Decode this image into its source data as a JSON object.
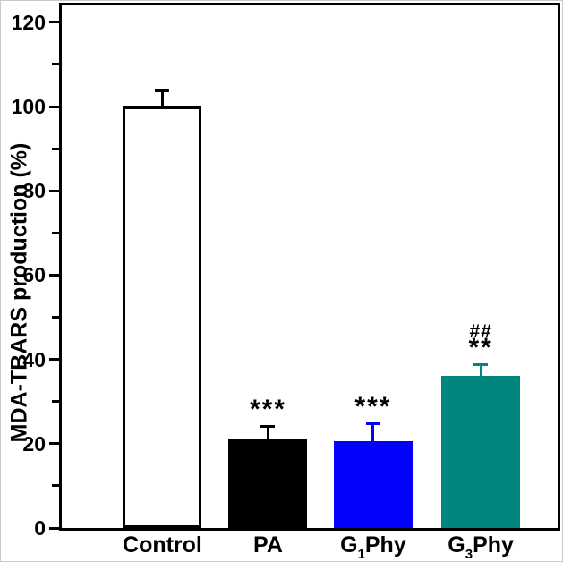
{
  "chart_data": {
    "type": "bar",
    "title": "",
    "xlabel": "",
    "ylabel": "MDA-TBARS production (%)",
    "ylim": [
      0,
      124
    ],
    "yticks_major": [
      0,
      20,
      40,
      60,
      80,
      100,
      120
    ],
    "yticks_minor": [
      10,
      30,
      50,
      70,
      90,
      110
    ],
    "grid": false,
    "legend": false,
    "categories": [
      "Control",
      "PA",
      "G1Phy",
      "G3Phy"
    ],
    "category_label_parts": [
      [
        "Control",
        "",
        ""
      ],
      [
        "PA",
        "",
        ""
      ],
      [
        "G",
        "1",
        "Phy"
      ],
      [
        "G",
        "3",
        "Phy"
      ]
    ],
    "values": [
      100,
      21,
      20.5,
      36
    ],
    "errors_plus": [
      4,
      3.5,
      4.5,
      3
    ],
    "bar_fill_colors": [
      "#ffffff",
      "#000000",
      "#0202fc",
      "#00857f"
    ],
    "bar_edge_colors": [
      "#000000",
      "#000000",
      "#0202fc",
      "#00857f"
    ],
    "error_bar_colors": [
      "#000000",
      "#000000",
      "#0202fc",
      "#00857f"
    ],
    "annotations": [
      [],
      [
        {
          "text": "***",
          "kind": "star"
        }
      ],
      [
        {
          "text": "***",
          "kind": "star"
        }
      ],
      [
        {
          "text": "##",
          "kind": "hash"
        },
        {
          "text": "**",
          "kind": "star"
        }
      ]
    ],
    "axis_color": "#000000",
    "background_color": "#ffffff"
  }
}
